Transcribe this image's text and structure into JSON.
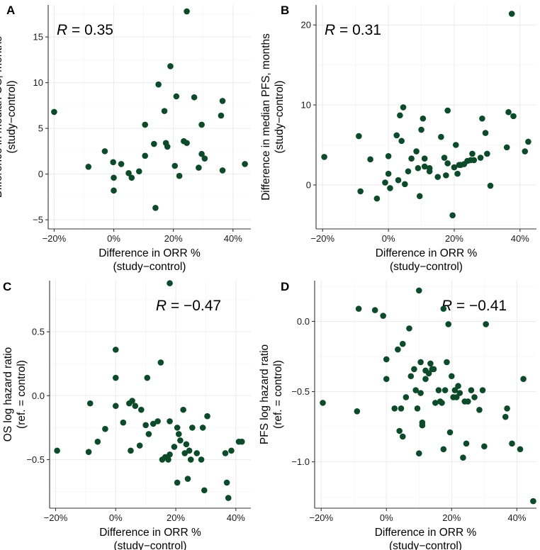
{
  "theme": {
    "point_color": "#0d4a2a",
    "grid_color": "#ebebeb",
    "axis_color": "#333333",
    "text_color": "#000000",
    "tick_text_color": "#1a1a1a"
  },
  "chart_data": [
    {
      "panel": "A",
      "type": "scatter",
      "xlabel": "Difference in ORR %",
      "xlabel_sub": "(study−control)",
      "ylabel": "Difference in median OS, months",
      "ylabel_sub": "(study−control)",
      "annotation": {
        "name": "R",
        "value": "= 0.35",
        "position": "top-left"
      },
      "xlim": [
        -22,
        46
      ],
      "ylim": [
        -6,
        18.5
      ],
      "x_ticks": [
        -20,
        0,
        20,
        40
      ],
      "x_tick_labels": [
        "−20%",
        "0%",
        "20%",
        "40%"
      ],
      "y_ticks": [
        -5,
        0,
        5,
        10,
        15
      ],
      "y_tick_labels": [
        "−5",
        "0",
        "5",
        "10",
        "15"
      ],
      "points": [
        [
          -20,
          6.8
        ],
        [
          -8.5,
          0.8
        ],
        [
          -3,
          2.5
        ],
        [
          -0.2,
          1.3
        ],
        [
          0,
          -0.4
        ],
        [
          0,
          -1.8
        ],
        [
          2.5,
          1.1
        ],
        [
          5,
          0.1
        ],
        [
          6,
          -0.4
        ],
        [
          8.5,
          0.3
        ],
        [
          10.5,
          5.4
        ],
        [
          10.5,
          2.0
        ],
        [
          13.5,
          3.3
        ],
        [
          14,
          -3.7
        ],
        [
          15,
          9.8
        ],
        [
          17,
          6.9
        ],
        [
          17.5,
          3.4
        ],
        [
          18,
          3.0
        ],
        [
          19,
          11.8
        ],
        [
          20.5,
          0.9
        ],
        [
          21,
          8.5
        ],
        [
          22,
          -0.2
        ],
        [
          23.5,
          3.6
        ],
        [
          24.5,
          3.4
        ],
        [
          24.5,
          17.8
        ],
        [
          27,
          8.4
        ],
        [
          28.5,
          0.7
        ],
        [
          29.5,
          2.2
        ],
        [
          29.5,
          5.4
        ],
        [
          30.5,
          1.7
        ],
        [
          36,
          6.4
        ],
        [
          36.5,
          8.0
        ],
        [
          36.5,
          0.4
        ],
        [
          44,
          1.1
        ]
      ]
    },
    {
      "panel": "B",
      "type": "scatter",
      "xlabel": "Difference in ORR %",
      "xlabel_sub": "(study−control)",
      "ylabel": "Difference in median PFS, months",
      "ylabel_sub": "(study−control)",
      "annotation": {
        "name": "R",
        "value": "= 0.31",
        "position": "top-left"
      },
      "xlim": [
        -22,
        45
      ],
      "ylim": [
        -5.5,
        22.5
      ],
      "x_ticks": [
        -20,
        0,
        20,
        40
      ],
      "x_tick_labels": [
        "−20%",
        "0%",
        "20%",
        "40%"
      ],
      "y_ticks": [
        0,
        10,
        20
      ],
      "y_tick_labels": [
        "0",
        "10",
        "20"
      ],
      "points": [
        [
          -19.5,
          3.5
        ],
        [
          -9,
          6.1
        ],
        [
          -8.5,
          -0.8
        ],
        [
          -5.5,
          3.2
        ],
        [
          -3.5,
          -1.7
        ],
        [
          -1,
          0.3
        ],
        [
          0,
          3.6
        ],
        [
          0,
          1.4
        ],
        [
          0.5,
          -0.4
        ],
        [
          2.5,
          6.2
        ],
        [
          3,
          0.6
        ],
        [
          3.5,
          8.7
        ],
        [
          4,
          5.5
        ],
        [
          4.5,
          9.7
        ],
        [
          5,
          0.1
        ],
        [
          6,
          1.7
        ],
        [
          7,
          3.3
        ],
        [
          8.5,
          4.2
        ],
        [
          9,
          2.1
        ],
        [
          9.5,
          -1.4
        ],
        [
          10,
          6.9
        ],
        [
          10.5,
          8.3
        ],
        [
          11,
          2.3
        ],
        [
          11,
          3.3
        ],
        [
          12.5,
          2.1
        ],
        [
          12.5,
          1.7
        ],
        [
          15,
          1.0
        ],
        [
          16,
          6.0
        ],
        [
          17,
          3.4
        ],
        [
          17.5,
          1.2
        ],
        [
          18,
          2.7
        ],
        [
          18,
          9.3
        ],
        [
          19.5,
          -3.8
        ],
        [
          20,
          2.2
        ],
        [
          20.5,
          5.0
        ],
        [
          21,
          1.4
        ],
        [
          21.5,
          2.5
        ],
        [
          22,
          2.5
        ],
        [
          23,
          2.6
        ],
        [
          24,
          3.0
        ],
        [
          25,
          3.1
        ],
        [
          25.5,
          3.9
        ],
        [
          26,
          3.1
        ],
        [
          28,
          3.4
        ],
        [
          28.5,
          8.3
        ],
        [
          29.5,
          6.5
        ],
        [
          30,
          3.9
        ],
        [
          31,
          -0.1
        ],
        [
          36,
          4.7
        ],
        [
          36.5,
          9.1
        ],
        [
          37.5,
          21.4
        ],
        [
          38,
          8.6
        ],
        [
          41.5,
          4.2
        ],
        [
          42.5,
          5.4
        ]
      ]
    },
    {
      "panel": "C",
      "type": "scatter",
      "xlabel": "Difference in ORR %",
      "xlabel_sub": "(study−control)",
      "ylabel": "OS log hazard ratio",
      "ylabel_sub": "(ref. = control)",
      "annotation": {
        "name": "R",
        "value": "= −0.47",
        "position": "top-right"
      },
      "xlim": [
        -22,
        45
      ],
      "ylim": [
        -0.88,
        0.9
      ],
      "x_ticks": [
        -20,
        0,
        20,
        40
      ],
      "x_tick_labels": [
        "−20%",
        "0%",
        "20%",
        "40%"
      ],
      "y_ticks": [
        -0.5,
        0.0,
        0.5
      ],
      "y_tick_labels": [
        "−0.5",
        "0.0",
        "0.5"
      ],
      "points": [
        [
          -19.5,
          -0.43
        ],
        [
          -9,
          -0.44
        ],
        [
          -8.5,
          -0.06
        ],
        [
          -6,
          -0.36
        ],
        [
          -3.5,
          -0.26
        ],
        [
          0,
          -0.08
        ],
        [
          0,
          0.14
        ],
        [
          0,
          0.36
        ],
        [
          2.5,
          -0.21
        ],
        [
          4.5,
          -0.06
        ],
        [
          5,
          -0.43
        ],
        [
          5.5,
          -0.04
        ],
        [
          6.5,
          -0.08
        ],
        [
          8,
          -0.39
        ],
        [
          8.5,
          -0.11
        ],
        [
          10,
          -0.23
        ],
        [
          10.5,
          0.14
        ],
        [
          11,
          -0.3
        ],
        [
          12.5,
          -0.22
        ],
        [
          14,
          -0.2
        ],
        [
          15,
          0.26
        ],
        [
          15.5,
          -0.5
        ],
        [
          16.5,
          -0.48
        ],
        [
          17.5,
          -0.5
        ],
        [
          18,
          -0.46
        ],
        [
          18,
          -0.2
        ],
        [
          18,
          0.88
        ],
        [
          19.5,
          -0.4
        ],
        [
          20.5,
          -0.68
        ],
        [
          20.5,
          -0.25
        ],
        [
          21,
          -0.3
        ],
        [
          21.5,
          -0.35
        ],
        [
          22.5,
          -0.11
        ],
        [
          23,
          -0.45
        ],
        [
          23.5,
          -0.38
        ],
        [
          24,
          -0.65
        ],
        [
          24.5,
          -0.43
        ],
        [
          25,
          -0.5
        ],
        [
          25.5,
          -0.25
        ],
        [
          27,
          -0.45
        ],
        [
          28.5,
          -0.5
        ],
        [
          29,
          -0.25
        ],
        [
          29.5,
          -0.74
        ],
        [
          30.5,
          -0.16
        ],
        [
          36.5,
          -0.45
        ],
        [
          37,
          -0.68
        ],
        [
          37.5,
          -0.8
        ],
        [
          38.5,
          -0.43
        ],
        [
          41,
          -0.36
        ],
        [
          42,
          -0.36
        ]
      ]
    },
    {
      "panel": "D",
      "type": "scatter",
      "xlabel": "Difference in ORR %",
      "xlabel_sub": "(study−control)",
      "ylabel": "PFS log hazard ratio",
      "ylabel_sub": "(ref. = control)",
      "annotation": {
        "name": "R",
        "value": "= −0.41",
        "position": "top-right"
      },
      "xlim": [
        -22,
        46
      ],
      "ylim": [
        -1.33,
        0.29
      ],
      "x_ticks": [
        -20,
        0,
        20,
        40
      ],
      "x_tick_labels": [
        "−20%",
        "0%",
        "20%",
        "40%"
      ],
      "y_ticks": [
        -1.0,
        -0.5,
        0.0
      ],
      "y_tick_labels": [
        "−1.0",
        "−0.5",
        "0.0"
      ],
      "points": [
        [
          -19.5,
          -0.58
        ],
        [
          -9,
          -0.64
        ],
        [
          -8.5,
          0.09
        ],
        [
          -3.5,
          0.08
        ],
        [
          -1,
          0.04
        ],
        [
          0,
          -0.27
        ],
        [
          0,
          -0.41
        ],
        [
          2.5,
          -0.62
        ],
        [
          3.5,
          -0.2
        ],
        [
          4,
          -0.78
        ],
        [
          4.5,
          -0.62
        ],
        [
          5,
          -0.82
        ],
        [
          5,
          -0.16
        ],
        [
          6,
          -0.54
        ],
        [
          7,
          -0.05
        ],
        [
          7.5,
          -0.39
        ],
        [
          8.5,
          -0.34
        ],
        [
          9,
          -0.49
        ],
        [
          9.5,
          -0.62
        ],
        [
          10,
          0.22
        ],
        [
          10,
          -0.94
        ],
        [
          10.5,
          -0.51
        ],
        [
          10.5,
          -0.29
        ],
        [
          11,
          -0.74
        ],
        [
          11,
          -0.72
        ],
        [
          12,
          -0.35
        ],
        [
          12,
          -0.41
        ],
        [
          13,
          -0.37
        ],
        [
          13.5,
          -0.3
        ],
        [
          14,
          -0.34
        ],
        [
          14.5,
          -0.34
        ],
        [
          15,
          -0.58
        ],
        [
          16,
          -0.49
        ],
        [
          16.5,
          -0.57
        ],
        [
          17,
          -0.58
        ],
        [
          17.5,
          -0.91
        ],
        [
          17.5,
          0.09
        ],
        [
          18,
          -0.49
        ],
        [
          18.5,
          -0.29
        ],
        [
          19,
          -0.02
        ],
        [
          19.5,
          -0.79
        ],
        [
          20,
          -0.39
        ],
        [
          20.5,
          -0.54
        ],
        [
          21,
          -0.49
        ],
        [
          21.5,
          -0.54
        ],
        [
          22,
          -0.46
        ],
        [
          22.5,
          -0.51
        ],
        [
          23.5,
          -0.97
        ],
        [
          24,
          -0.57
        ],
        [
          24.5,
          -0.87
        ],
        [
          25,
          -0.57
        ],
        [
          26,
          -0.49
        ],
        [
          27,
          -0.54
        ],
        [
          28.5,
          -0.63
        ],
        [
          29.5,
          -0.49
        ],
        [
          30,
          -0.89
        ],
        [
          30.5,
          -0.02
        ],
        [
          36.5,
          -0.68
        ],
        [
          37,
          -0.62
        ],
        [
          38.5,
          -0.87
        ],
        [
          41,
          -0.91
        ],
        [
          42,
          -0.41
        ],
        [
          45,
          -1.28
        ]
      ]
    }
  ]
}
